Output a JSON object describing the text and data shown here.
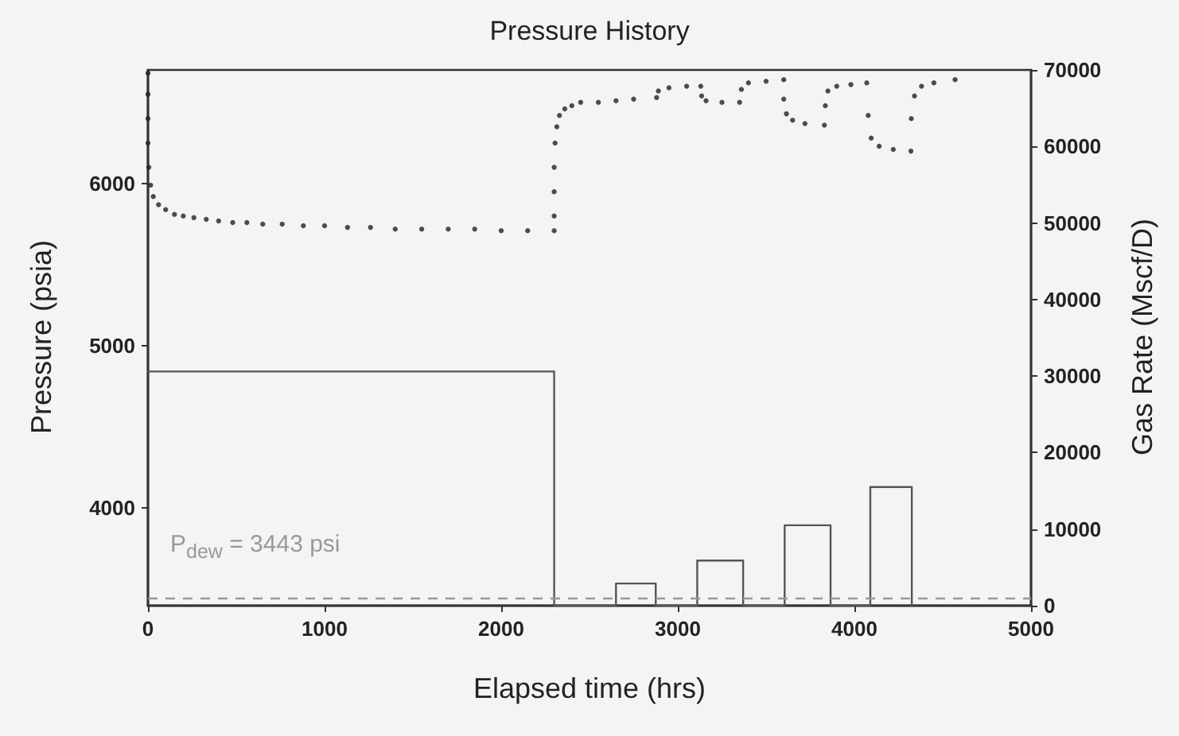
{
  "chart_data": {
    "type": "scatter",
    "title": "Pressure History",
    "xlabel": "Elapsed time (hrs)",
    "ylabel": "Pressure (psia)",
    "y2label": "Gas Rate (Mscf/D)",
    "xlim": [
      0,
      5000
    ],
    "xticks": [
      0,
      1000,
      2000,
      3000,
      4000,
      5000
    ],
    "ylim": [
      3400,
      6700
    ],
    "yticks": [
      4000,
      5000,
      6000
    ],
    "y2lim": [
      0,
      70000
    ],
    "y2ticks": [
      0,
      10000,
      20000,
      30000,
      40000,
      50000,
      60000,
      70000
    ],
    "grid": false,
    "series": [
      {
        "color": "#222222",
        "marker": "circle",
        "x": [
          0,
          0,
          0,
          0,
          5,
          15,
          30,
          60,
          100,
          150,
          200,
          260,
          330,
          400,
          480,
          560,
          650,
          760,
          880,
          1000,
          1130,
          1260,
          1400,
          1550,
          1700,
          1850,
          2000,
          2150,
          2300,
          2300,
          2300,
          2300,
          2305,
          2315,
          2330,
          2360,
          2400,
          2450,
          2550,
          2650,
          2750,
          2880,
          2890,
          2950,
          3050,
          3130,
          3135,
          3160,
          3250,
          3350,
          3360,
          3400,
          3500,
          3600,
          3600,
          3615,
          3650,
          3720,
          3830,
          3835,
          3850,
          3900,
          3980,
          4070,
          4078,
          4095,
          4140,
          4220,
          4320,
          4322,
          4340,
          4380,
          4450,
          4570
        ],
        "values": [
          6680,
          6550,
          6400,
          6250,
          6100,
          5990,
          5920,
          5870,
          5840,
          5810,
          5800,
          5790,
          5780,
          5770,
          5760,
          5760,
          5750,
          5750,
          5740,
          5740,
          5730,
          5730,
          5720,
          5720,
          5720,
          5720,
          5710,
          5710,
          5710,
          5800,
          5950,
          6100,
          6250,
          6350,
          6420,
          6460,
          6480,
          6500,
          6500,
          6510,
          6520,
          6530,
          6570,
          6590,
          6600,
          6600,
          6540,
          6510,
          6500,
          6500,
          6580,
          6620,
          6630,
          6640,
          6520,
          6430,
          6390,
          6370,
          6360,
          6480,
          6570,
          6600,
          6610,
          6620,
          6420,
          6280,
          6230,
          6210,
          6200,
          6400,
          6540,
          6600,
          6620,
          6640
        ]
      },
      {
        "type": "step",
        "axis": "y2",
        "color": "#555555",
        "x": [
          0,
          2300,
          2650,
          2875,
          3110,
          3370,
          3605,
          3865,
          4090,
          4325
        ],
        "values": [
          30600,
          0,
          2900,
          0,
          5900,
          0,
          10500,
          0,
          15500,
          0
        ]
      }
    ],
    "ref_lines": [
      {
        "axis": "y",
        "value": 3443,
        "label": "P$_{dew}$ = 3443 psi",
        "color": "#999999",
        "line_style": "dashed"
      }
    ]
  }
}
